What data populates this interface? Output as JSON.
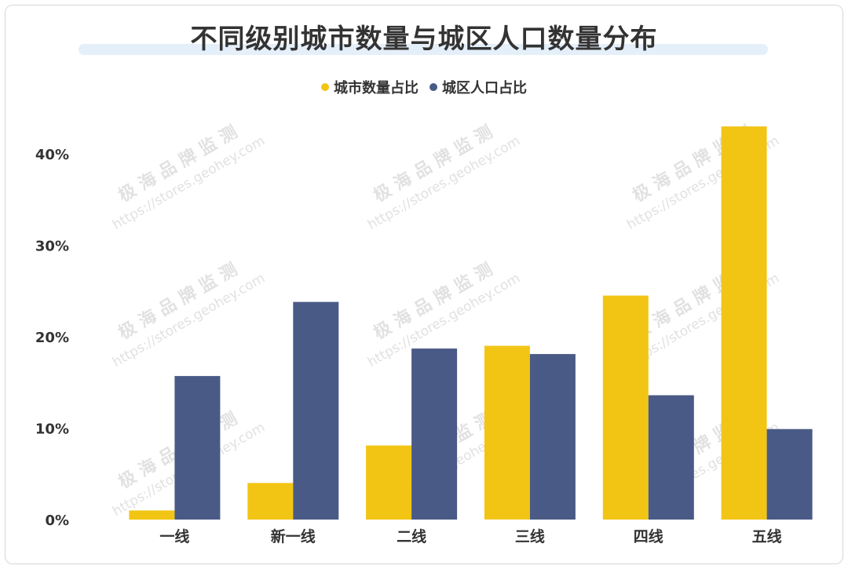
{
  "colors": {
    "city_count": "#f2c515",
    "urban_population": "#4a5a86"
  },
  "watermark": {
    "brand": "极 海 品 牌 监 测",
    "url": "https://stores.geohey.com"
  },
  "chart_data": {
    "type": "bar",
    "title": "不同级别城市数量与城区人口数量分布",
    "xlabel": "",
    "ylabel": "",
    "categories": [
      "一线",
      "新一线",
      "二线",
      "三线",
      "四线",
      "五线"
    ],
    "series": [
      {
        "name": "城市数量占比",
        "values": [
          1.0,
          4.0,
          8.1,
          19.0,
          24.5,
          43.0
        ]
      },
      {
        "name": "城区人口占比",
        "values": [
          15.7,
          23.8,
          18.7,
          18.1,
          13.6,
          9.9
        ]
      }
    ],
    "yticks": [
      "0%",
      "10%",
      "20%",
      "30%",
      "40%"
    ],
    "ytick_values": [
      0,
      10,
      20,
      30,
      40
    ],
    "ylim": [
      0,
      45
    ],
    "grid": false,
    "legend": "top-center"
  }
}
